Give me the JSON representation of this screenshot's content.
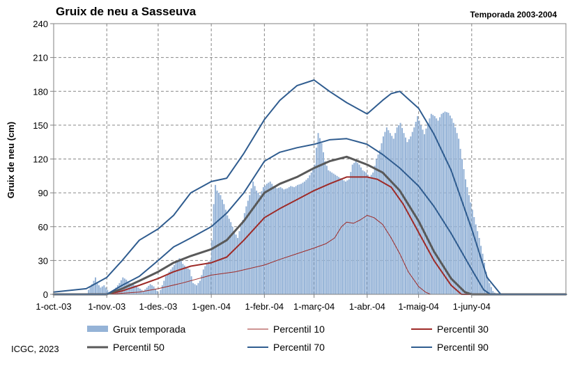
{
  "chart_data": {
    "type": "bar+line",
    "title": "Gruix de neu a Sasseuva",
    "subtitle": "Temporada 2003-2004",
    "ylabel": "Gruix de neu (cm)",
    "xlabel": "",
    "ylim": [
      0,
      240
    ],
    "yticks": [
      0,
      30,
      60,
      90,
      120,
      150,
      180,
      210,
      240
    ],
    "xlim": [
      "2003-10-01",
      "2004-07-26"
    ],
    "xtick_dates": [
      "2003-10-01",
      "2003-11-01",
      "2003-12-01",
      "2004-01-01",
      "2004-02-01",
      "2004-03-01",
      "2004-04-01",
      "2004-05-01",
      "2004-06-01"
    ],
    "xtick_labels": [
      "1-oct.-03",
      "1-nov.-03",
      "1-des.-03",
      "1-gen.-04",
      "1-febr.-04",
      "1-març-04",
      "1-abr.-04",
      "1-maig-04",
      "1-juny-04"
    ],
    "grid": true,
    "legend_position": "bottom",
    "source_text": "ICGC, 2023",
    "bars": {
      "name": "Gruix temporada",
      "color": "#95b3d7",
      "points": [
        [
          "2003-10-01",
          0
        ],
        [
          "2003-10-20",
          0
        ],
        [
          "2003-10-21",
          4
        ],
        [
          "2003-10-23",
          9
        ],
        [
          "2003-10-25",
          15
        ],
        [
          "2003-10-26",
          10
        ],
        [
          "2003-10-28",
          6
        ],
        [
          "2003-10-30",
          8
        ],
        [
          "2003-11-01",
          4
        ],
        [
          "2003-11-02",
          2
        ],
        [
          "2003-11-03",
          0
        ],
        [
          "2003-11-05",
          0
        ],
        [
          "2003-11-06",
          6
        ],
        [
          "2003-11-08",
          10
        ],
        [
          "2003-11-10",
          15
        ],
        [
          "2003-11-12",
          13
        ],
        [
          "2003-11-14",
          10
        ],
        [
          "2003-11-16",
          9
        ],
        [
          "2003-11-18",
          7
        ],
        [
          "2003-11-20",
          5
        ],
        [
          "2003-11-22",
          3
        ],
        [
          "2003-11-24",
          6
        ],
        [
          "2003-11-26",
          9
        ],
        [
          "2003-11-28",
          7
        ],
        [
          "2003-11-30",
          3
        ],
        [
          "2003-12-01",
          0
        ],
        [
          "2003-12-03",
          8
        ],
        [
          "2003-12-05",
          16
        ],
        [
          "2003-12-07",
          20
        ],
        [
          "2003-12-09",
          24
        ],
        [
          "2003-12-11",
          28
        ],
        [
          "2003-12-13",
          32
        ],
        [
          "2003-12-15",
          27
        ],
        [
          "2003-12-17",
          24
        ],
        [
          "2003-12-19",
          22
        ],
        [
          "2003-12-21",
          10
        ],
        [
          "2003-12-23",
          8
        ],
        [
          "2003-12-25",
          12
        ],
        [
          "2003-12-27",
          22
        ],
        [
          "2003-12-29",
          28
        ],
        [
          "2003-12-31",
          30
        ],
        [
          "2004-01-01",
          48
        ],
        [
          "2004-01-02",
          80
        ],
        [
          "2004-01-03",
          97
        ],
        [
          "2004-01-04",
          92
        ],
        [
          "2004-01-06",
          88
        ],
        [
          "2004-01-08",
          80
        ],
        [
          "2004-01-10",
          70
        ],
        [
          "2004-01-12",
          64
        ],
        [
          "2004-01-14",
          56
        ],
        [
          "2004-01-16",
          50
        ],
        [
          "2004-01-17",
          56
        ],
        [
          "2004-01-19",
          66
        ],
        [
          "2004-01-21",
          78
        ],
        [
          "2004-01-23",
          88
        ],
        [
          "2004-01-25",
          100
        ],
        [
          "2004-01-26",
          96
        ],
        [
          "2004-01-27",
          92
        ],
        [
          "2004-01-29",
          88
        ],
        [
          "2004-01-31",
          95
        ],
        [
          "2004-02-02",
          98
        ],
        [
          "2004-02-04",
          100
        ],
        [
          "2004-02-06",
          96
        ],
        [
          "2004-02-08",
          94
        ],
        [
          "2004-02-10",
          95
        ],
        [
          "2004-02-12",
          93
        ],
        [
          "2004-02-14",
          94
        ],
        [
          "2004-02-16",
          96
        ],
        [
          "2004-02-18",
          95
        ],
        [
          "2004-02-20",
          97
        ],
        [
          "2004-02-22",
          98
        ],
        [
          "2004-02-24",
          100
        ],
        [
          "2004-02-26",
          103
        ],
        [
          "2004-02-28",
          108
        ],
        [
          "2004-03-01",
          115
        ],
        [
          "2004-03-02",
          130
        ],
        [
          "2004-03-03",
          143
        ],
        [
          "2004-03-05",
          134
        ],
        [
          "2004-03-07",
          118
        ],
        [
          "2004-03-09",
          110
        ],
        [
          "2004-03-11",
          108
        ],
        [
          "2004-03-13",
          106
        ],
        [
          "2004-03-15",
          104
        ],
        [
          "2004-03-17",
          102
        ],
        [
          "2004-03-19",
          100
        ],
        [
          "2004-03-21",
          102
        ],
        [
          "2004-03-23",
          115
        ],
        [
          "2004-03-25",
          118
        ],
        [
          "2004-03-27",
          115
        ],
        [
          "2004-03-29",
          110
        ],
        [
          "2004-03-31",
          108
        ],
        [
          "2004-04-02",
          104
        ],
        [
          "2004-04-04",
          108
        ],
        [
          "2004-04-06",
          120
        ],
        [
          "2004-04-08",
          128
        ],
        [
          "2004-04-10",
          140
        ],
        [
          "2004-04-12",
          148
        ],
        [
          "2004-04-14",
          143
        ],
        [
          "2004-04-16",
          138
        ],
        [
          "2004-04-18",
          148
        ],
        [
          "2004-04-20",
          152
        ],
        [
          "2004-04-22",
          143
        ],
        [
          "2004-04-24",
          135
        ],
        [
          "2004-04-26",
          140
        ],
        [
          "2004-04-28",
          148
        ],
        [
          "2004-04-30",
          158
        ],
        [
          "2004-05-02",
          150
        ],
        [
          "2004-05-04",
          142
        ],
        [
          "2004-05-06",
          152
        ],
        [
          "2004-05-08",
          160
        ],
        [
          "2004-05-10",
          158
        ],
        [
          "2004-05-12",
          154
        ],
        [
          "2004-05-14",
          160
        ],
        [
          "2004-05-16",
          162
        ],
        [
          "2004-05-18",
          161
        ],
        [
          "2004-05-20",
          156
        ],
        [
          "2004-05-22",
          148
        ],
        [
          "2004-05-24",
          138
        ],
        [
          "2004-05-26",
          120
        ],
        [
          "2004-05-28",
          102
        ],
        [
          "2004-05-30",
          88
        ],
        [
          "2004-06-01",
          75
        ],
        [
          "2004-06-03",
          62
        ],
        [
          "2004-06-05",
          50
        ],
        [
          "2004-06-07",
          36
        ],
        [
          "2004-06-09",
          20
        ],
        [
          "2004-06-11",
          10
        ],
        [
          "2004-06-13",
          3
        ],
        [
          "2004-06-15",
          0
        ],
        [
          "2004-07-26",
          0
        ]
      ]
    },
    "series": [
      {
        "name": "Percentil 10",
        "color": "#9e2a27",
        "width": 1,
        "points": [
          [
            "2003-10-01",
            0
          ],
          [
            "2003-11-01",
            0
          ],
          [
            "2003-11-20",
            2
          ],
          [
            "2003-12-01",
            5
          ],
          [
            "2003-12-15",
            10
          ],
          [
            "2004-01-01",
            17
          ],
          [
            "2004-01-15",
            20
          ],
          [
            "2004-02-01",
            26
          ],
          [
            "2004-02-10",
            31
          ],
          [
            "2004-02-20",
            36
          ],
          [
            "2004-03-01",
            41
          ],
          [
            "2004-03-08",
            45
          ],
          [
            "2004-03-13",
            50
          ],
          [
            "2004-03-17",
            60
          ],
          [
            "2004-03-20",
            64
          ],
          [
            "2004-03-24",
            63
          ],
          [
            "2004-03-28",
            66
          ],
          [
            "2004-04-01",
            70
          ],
          [
            "2004-04-05",
            68
          ],
          [
            "2004-04-10",
            62
          ],
          [
            "2004-04-15",
            50
          ],
          [
            "2004-04-20",
            36
          ],
          [
            "2004-04-25",
            20
          ],
          [
            "2004-05-01",
            7
          ],
          [
            "2004-05-05",
            2
          ],
          [
            "2004-05-08",
            0
          ],
          [
            "2004-07-26",
            0
          ]
        ]
      },
      {
        "name": "Percentil 30",
        "color": "#9e2a27",
        "width": 2,
        "points": [
          [
            "2003-10-01",
            0
          ],
          [
            "2003-11-01",
            0
          ],
          [
            "2003-11-10",
            3
          ],
          [
            "2003-11-20",
            8
          ],
          [
            "2003-12-01",
            14
          ],
          [
            "2003-12-10",
            20
          ],
          [
            "2003-12-20",
            25
          ],
          [
            "2004-01-01",
            28
          ],
          [
            "2004-01-10",
            33
          ],
          [
            "2004-01-20",
            48
          ],
          [
            "2004-02-01",
            68
          ],
          [
            "2004-02-10",
            76
          ],
          [
            "2004-02-20",
            84
          ],
          [
            "2004-03-01",
            92
          ],
          [
            "2004-03-10",
            98
          ],
          [
            "2004-03-20",
            104
          ],
          [
            "2004-04-01",
            104
          ],
          [
            "2004-04-07",
            102
          ],
          [
            "2004-04-15",
            95
          ],
          [
            "2004-04-22",
            80
          ],
          [
            "2004-05-01",
            55
          ],
          [
            "2004-05-10",
            30
          ],
          [
            "2004-05-20",
            8
          ],
          [
            "2004-05-26",
            0
          ],
          [
            "2004-07-26",
            0
          ]
        ]
      },
      {
        "name": "Percentil 50",
        "color": "#595959",
        "width": 3,
        "points": [
          [
            "2003-10-01",
            0
          ],
          [
            "2003-11-01",
            0
          ],
          [
            "2003-11-10",
            5
          ],
          [
            "2003-11-20",
            12
          ],
          [
            "2003-12-01",
            20
          ],
          [
            "2003-12-10",
            28
          ],
          [
            "2003-12-20",
            34
          ],
          [
            "2004-01-01",
            40
          ],
          [
            "2004-01-10",
            48
          ],
          [
            "2004-01-20",
            65
          ],
          [
            "2004-02-01",
            90
          ],
          [
            "2004-02-10",
            98
          ],
          [
            "2004-02-20",
            104
          ],
          [
            "2004-03-01",
            112
          ],
          [
            "2004-03-10",
            118
          ],
          [
            "2004-03-20",
            122
          ],
          [
            "2004-04-01",
            115
          ],
          [
            "2004-04-10",
            108
          ],
          [
            "2004-04-20",
            92
          ],
          [
            "2004-05-01",
            65
          ],
          [
            "2004-05-10",
            38
          ],
          [
            "2004-05-20",
            14
          ],
          [
            "2004-05-28",
            2
          ],
          [
            "2004-06-01",
            0
          ],
          [
            "2004-07-26",
            0
          ]
        ]
      },
      {
        "name": "Percentil 70",
        "color": "#2f5c8f",
        "width": 2,
        "points": [
          [
            "2003-10-01",
            0
          ],
          [
            "2003-11-01",
            0
          ],
          [
            "2003-11-10",
            8
          ],
          [
            "2003-11-20",
            16
          ],
          [
            "2003-12-01",
            30
          ],
          [
            "2003-12-10",
            42
          ],
          [
            "2003-12-20",
            50
          ],
          [
            "2004-01-01",
            60
          ],
          [
            "2004-01-10",
            72
          ],
          [
            "2004-01-20",
            90
          ],
          [
            "2004-02-01",
            118
          ],
          [
            "2004-02-10",
            126
          ],
          [
            "2004-02-20",
            130
          ],
          [
            "2004-03-01",
            133
          ],
          [
            "2004-03-10",
            137
          ],
          [
            "2004-03-20",
            138
          ],
          [
            "2004-04-01",
            133
          ],
          [
            "2004-04-10",
            124
          ],
          [
            "2004-04-20",
            112
          ],
          [
            "2004-05-01",
            96
          ],
          [
            "2004-05-10",
            78
          ],
          [
            "2004-05-20",
            54
          ],
          [
            "2004-06-01",
            22
          ],
          [
            "2004-06-08",
            4
          ],
          [
            "2004-06-12",
            0
          ],
          [
            "2004-07-26",
            0
          ]
        ]
      },
      {
        "name": "Percentil 90",
        "color": "#2f5c8f",
        "width": 2,
        "points": [
          [
            "2003-10-01",
            2
          ],
          [
            "2003-10-20",
            5
          ],
          [
            "2003-11-01",
            15
          ],
          [
            "2003-11-10",
            30
          ],
          [
            "2003-11-20",
            48
          ],
          [
            "2003-12-01",
            58
          ],
          [
            "2003-12-10",
            70
          ],
          [
            "2003-12-20",
            90
          ],
          [
            "2004-01-01",
            100
          ],
          [
            "2004-01-10",
            103
          ],
          [
            "2004-01-20",
            125
          ],
          [
            "2004-02-01",
            155
          ],
          [
            "2004-02-10",
            172
          ],
          [
            "2004-02-20",
            185
          ],
          [
            "2004-03-01",
            190
          ],
          [
            "2004-03-10",
            180
          ],
          [
            "2004-03-20",
            170
          ],
          [
            "2004-04-01",
            160
          ],
          [
            "2004-04-10",
            172
          ],
          [
            "2004-04-15",
            178
          ],
          [
            "2004-04-20",
            180
          ],
          [
            "2004-05-01",
            165
          ],
          [
            "2004-05-10",
            142
          ],
          [
            "2004-05-20",
            110
          ],
          [
            "2004-06-01",
            58
          ],
          [
            "2004-06-10",
            15
          ],
          [
            "2004-06-18",
            0
          ],
          [
            "2004-07-26",
            0
          ]
        ]
      }
    ],
    "legend": [
      "Gruix temporada",
      "Percentil 10",
      "Percentil 30",
      "Percentil 50",
      "Percentil 70",
      "Percentil 90"
    ]
  }
}
